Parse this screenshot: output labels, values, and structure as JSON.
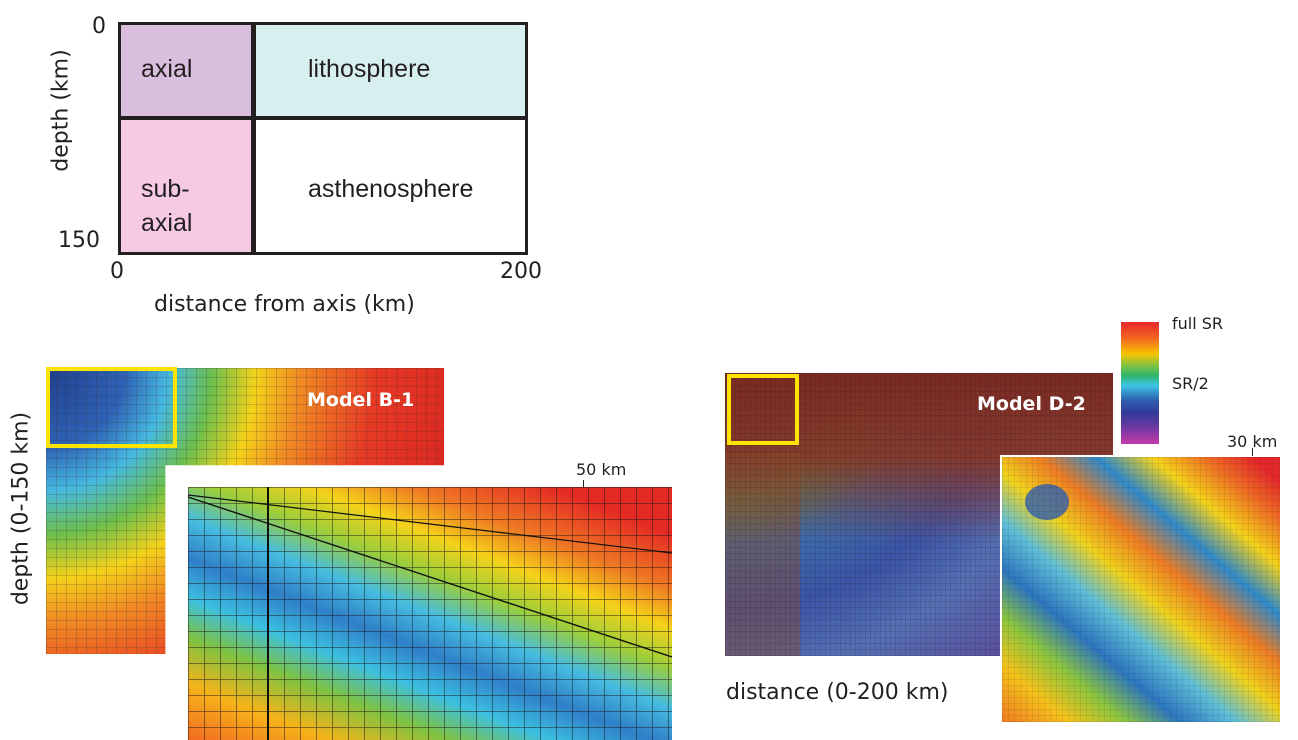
{
  "schematic": {
    "y_top": "0",
    "y_bottom": "150",
    "y_label": "depth (km)",
    "x_left": "0",
    "x_right": "200",
    "x_label": "distance from axis (km)",
    "regions": {
      "axial": "axial",
      "lithosphere": "lithosphere",
      "subaxial_line1": "sub-",
      "subaxial_line2": "axial",
      "asthenosphere": "asthenosphere"
    },
    "colors": {
      "axial": "#d9bedd",
      "lithosphere": "#d8eff0",
      "subaxial": "#f6c9e4",
      "asthenosphere": "#ffffff"
    }
  },
  "model_b": {
    "title": "Model B-1",
    "depth_label": "depth (0-150 km)",
    "inset_label": "50 km"
  },
  "model_d": {
    "title": "Model D-2",
    "distance_label": "distance (0-200 km)",
    "inset_label": "30 km"
  },
  "colorscale": {
    "top_label": "full SR",
    "mid_label": "SR/2",
    "colors": [
      "#e8262b",
      "#f36b21",
      "#f7c400",
      "#2db46a",
      "#3fc4e6",
      "#2f5fb0",
      "#c43ba8"
    ]
  },
  "highlight_color": "#fde400"
}
